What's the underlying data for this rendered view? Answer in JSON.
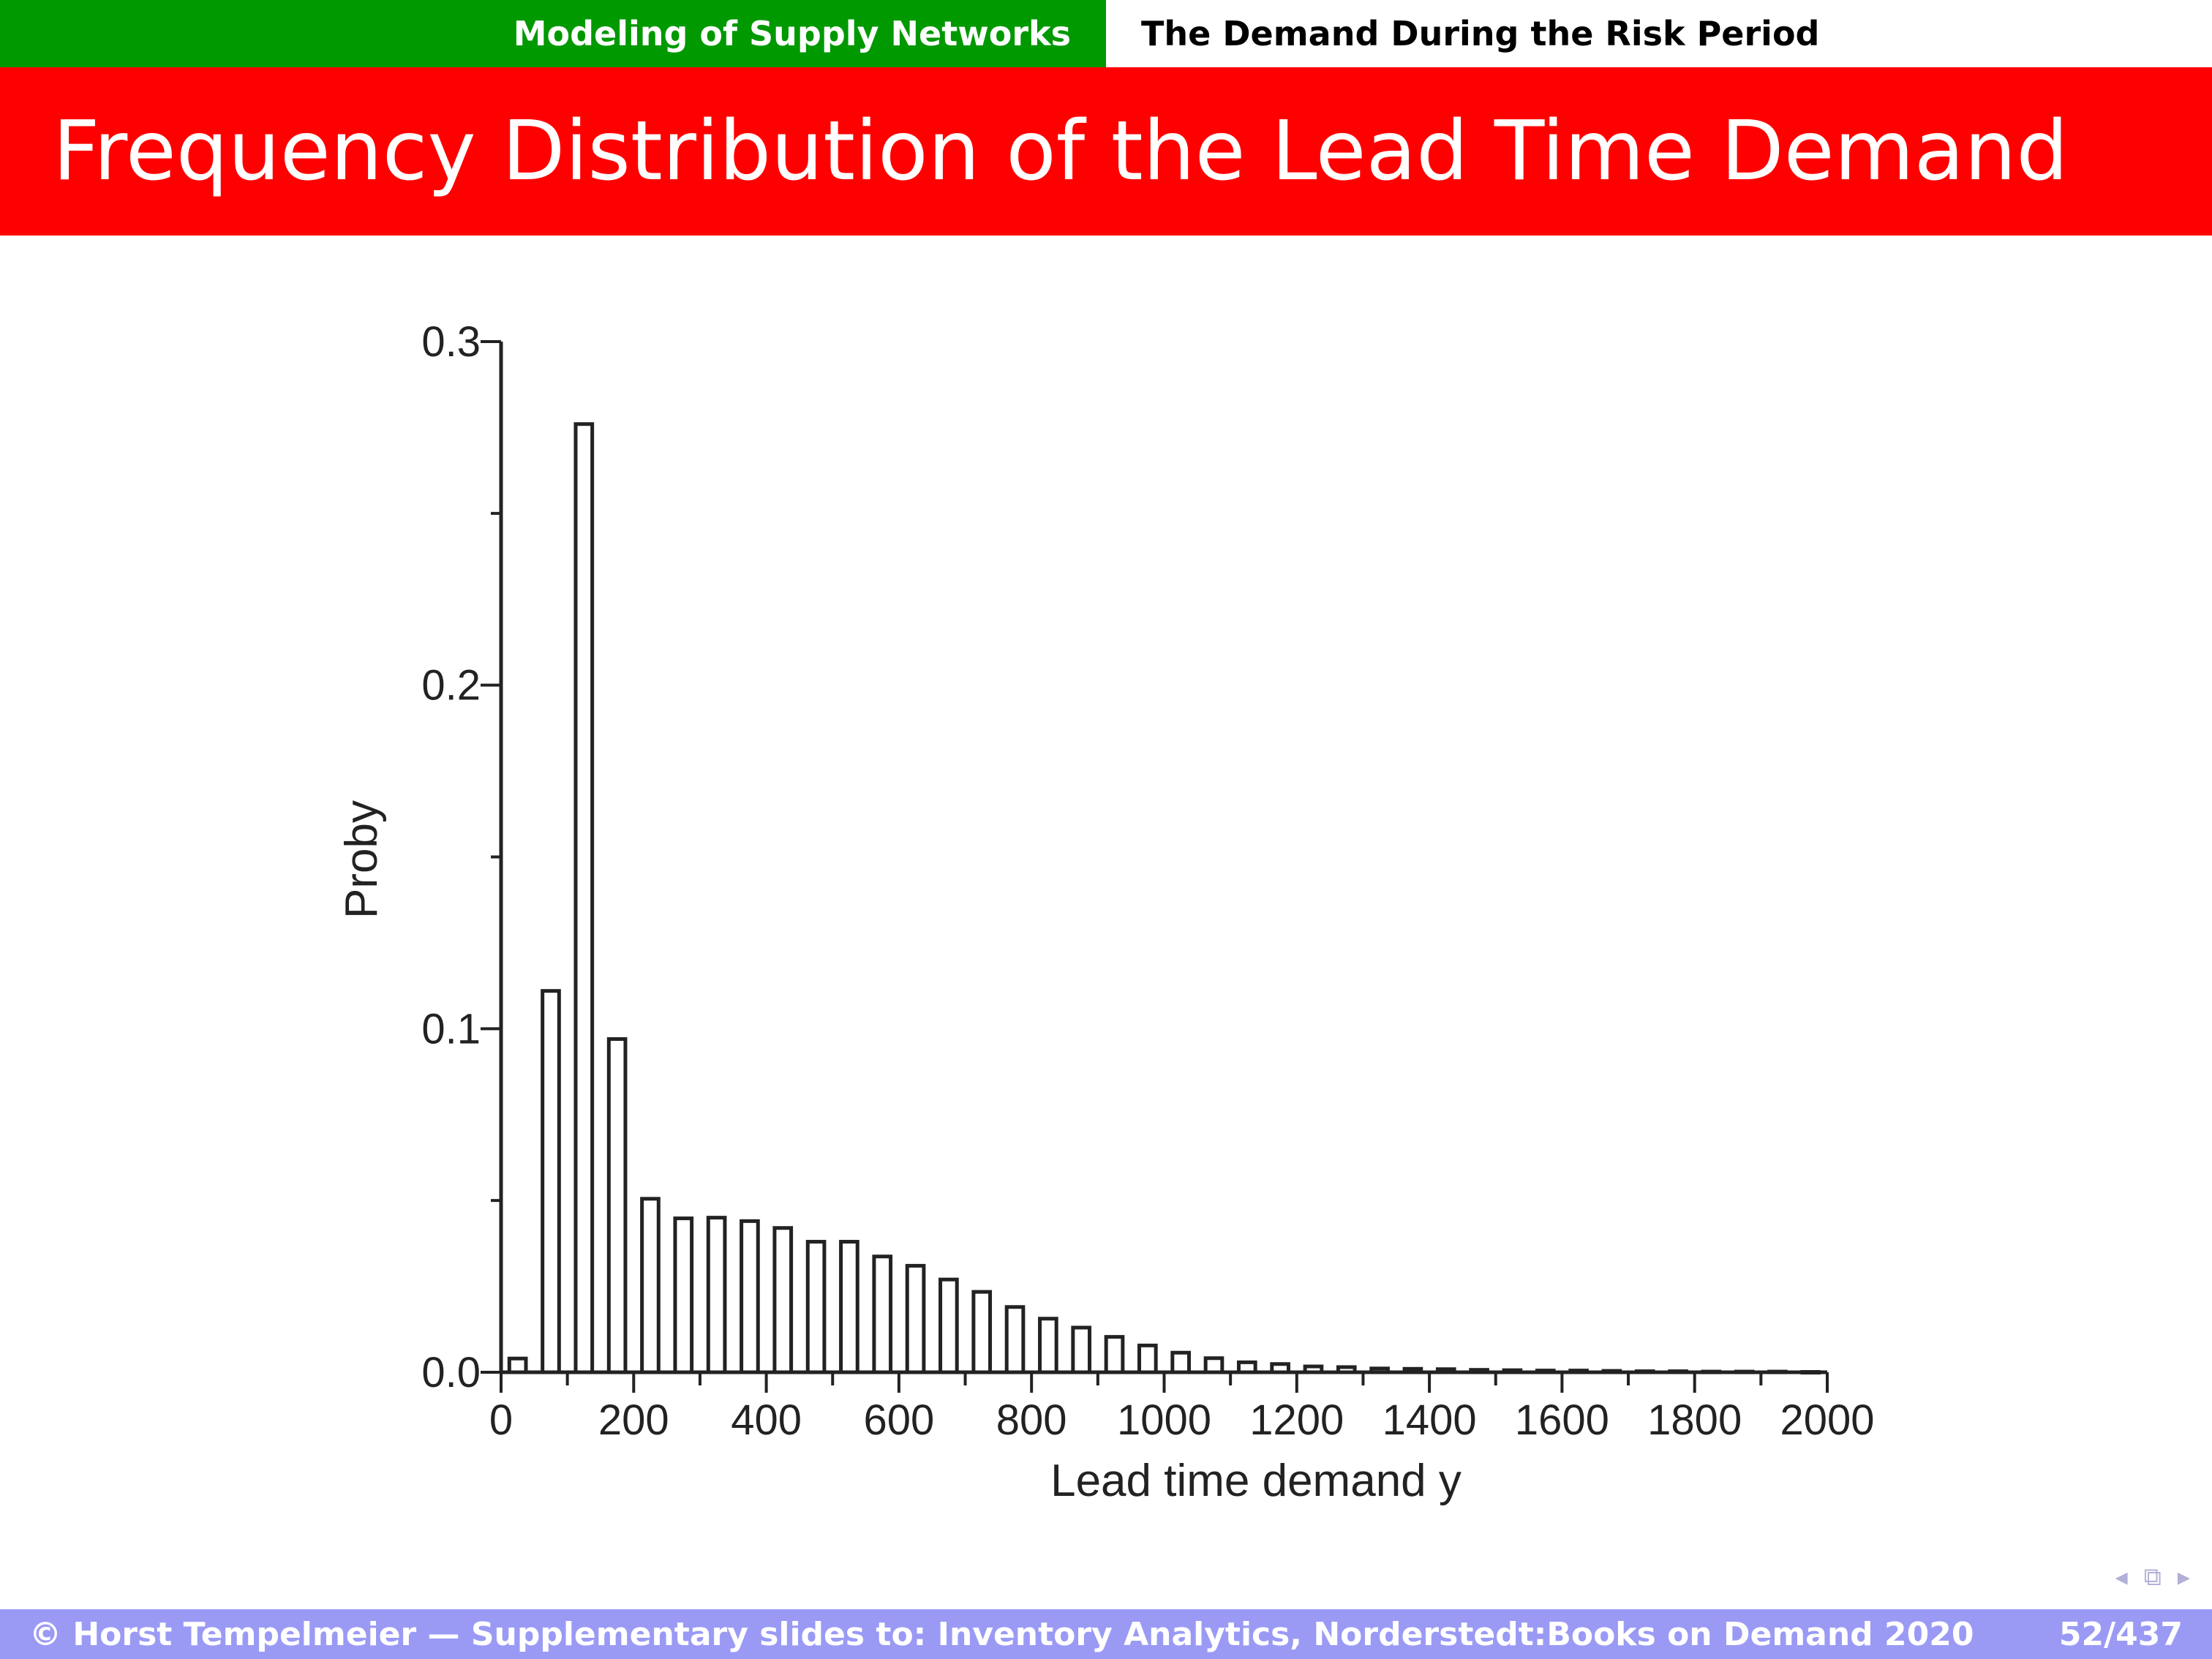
{
  "header": {
    "section": "Modeling of Supply Networks",
    "subsection": "The Demand During the Risk Period",
    "title": "Frequency Distribution of the Lead Time Demand",
    "colors": {
      "section_bg": "#009900",
      "title_bg": "#ff0000",
      "footer_bg": "#9a9af5"
    }
  },
  "footer": {
    "copyright": "© Horst Tempelmeier — Supplementary slides to: Inventory Analytics, Norderstedt:Books on Demand 2020",
    "page": "52/437"
  },
  "nav_icons": [
    "arrow-left-icon",
    "frame-icon",
    "arrow-right-icon"
  ],
  "chart_data": {
    "type": "bar",
    "title": "",
    "xlabel": "Lead time demand y",
    "ylabel": "Proby",
    "xlim": [
      0,
      2000
    ],
    "ylim": [
      0,
      0.3
    ],
    "xticks": [
      "0",
      "200",
      "400",
      "600",
      "800",
      "1000",
      "1200",
      "1400",
      "1600",
      "1800",
      "2000"
    ],
    "yticks": [
      "0.0",
      "0.1",
      "0.2",
      "0.3"
    ],
    "grid": false,
    "bin_width": 50,
    "x": [
      25,
      75,
      125,
      175,
      225,
      275,
      325,
      375,
      425,
      475,
      525,
      575,
      625,
      675,
      725,
      775,
      825,
      875,
      925,
      975,
      1025,
      1075,
      1125,
      1175,
      1225,
      1275,
      1325,
      1375,
      1425,
      1475,
      1525,
      1575,
      1625,
      1675,
      1725,
      1775,
      1825,
      1875,
      1925,
      1975
    ],
    "values": [
      0.004,
      0.111,
      0.276,
      0.097,
      0.0505,
      0.0448,
      0.045,
      0.044,
      0.042,
      0.038,
      0.038,
      0.0337,
      0.031,
      0.027,
      0.0234,
      0.019,
      0.0156,
      0.013,
      0.0103,
      0.0078,
      0.0057,
      0.0041,
      0.0029,
      0.0024,
      0.0017,
      0.0015,
      0.0011,
      0.001,
      0.0009,
      0.0007,
      0.0006,
      0.0005,
      0.0005,
      0.0004,
      0.0003,
      0.0003,
      0.0002,
      0.0002,
      0.0002,
      0.0001
    ]
  }
}
